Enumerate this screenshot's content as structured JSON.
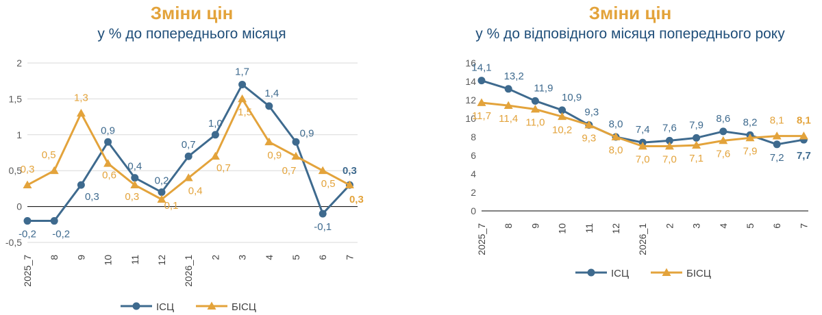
{
  "colors": {
    "isc": "#3e6a8e",
    "bisc": "#e3a33b",
    "title": "#e3a33b",
    "subtitle": "#1f4e79",
    "axis": "#595959",
    "grid": "#d9d9d9"
  },
  "chart_data": [
    {
      "type": "line",
      "title": "Зміни цін",
      "subtitle": "у % до попереднього місяця",
      "categories": [
        "2025_7",
        "8",
        "9",
        "10",
        "11",
        "12",
        "2026_1",
        "2",
        "3",
        "4",
        "5",
        "6",
        "7"
      ],
      "ylim": [
        -0.5,
        2
      ],
      "yticks": [
        "-0,5",
        "0",
        "0,5",
        "1",
        "1,5",
        "2"
      ],
      "grid": true,
      "legend": "bottom",
      "series": [
        {
          "name": "ІСЦ",
          "values": [
            -0.2,
            -0.2,
            0.3,
            0.9,
            0.4,
            0.2,
            0.7,
            1.0,
            1.7,
            1.4,
            0.9,
            -0.1,
            0.3
          ],
          "labels": [
            "-0,2",
            "-0,2",
            "0,3",
            "0,9",
            "0,4",
            "0,2",
            "0,7",
            "1,0",
            "1,7",
            "1,4",
            "0,9",
            "-0,1",
            "0,3"
          ]
        },
        {
          "name": "БІСЦ",
          "values": [
            0.3,
            0.5,
            1.3,
            0.6,
            0.3,
            0.1,
            0.4,
            0.7,
            1.5,
            0.9,
            0.7,
            0.5,
            0.3
          ],
          "labels": [
            "0,3",
            "0,5",
            "1,3",
            "0,6",
            "0,3",
            "0,1",
            "0,4",
            "0,7",
            "1,5",
            "0,9",
            "0,7",
            "0,5",
            "0,3"
          ]
        }
      ]
    },
    {
      "type": "line",
      "title": "Зміни цін",
      "subtitle": "у % до відповідного місяця попереднього року",
      "categories": [
        "2025_7",
        "8",
        "9",
        "10",
        "11",
        "12",
        "2026_1",
        "2",
        "3",
        "4",
        "5",
        "6",
        "7"
      ],
      "ylim": [
        0,
        16
      ],
      "yticks": [
        "0",
        "2",
        "4",
        "6",
        "8",
        "10",
        "12",
        "14",
        "16"
      ],
      "grid": false,
      "legend": "bottom",
      "series": [
        {
          "name": "ІСЦ",
          "values": [
            14.1,
            13.2,
            11.9,
            10.9,
            9.3,
            8.0,
            7.4,
            7.6,
            7.9,
            8.6,
            8.2,
            7.2,
            7.7
          ],
          "labels": [
            "14,1",
            "13,2",
            "11,9",
            "10,9",
            "9,3",
            "8,0",
            "7,4",
            "7,6",
            "7,9",
            "8,6",
            "8,2",
            "7,2",
            "7,7"
          ]
        },
        {
          "name": "БІСЦ",
          "values": [
            11.7,
            11.4,
            11.0,
            10.2,
            9.3,
            8.0,
            7.0,
            7.0,
            7.1,
            7.6,
            7.9,
            8.1,
            8.1
          ],
          "labels": [
            "11,7",
            "11,4",
            "11,0",
            "10,2",
            "9,3",
            "8,0",
            "7,0",
            "7,0",
            "7,1",
            "7,6",
            "7,9",
            "8,1",
            "8,1"
          ]
        }
      ]
    }
  ]
}
